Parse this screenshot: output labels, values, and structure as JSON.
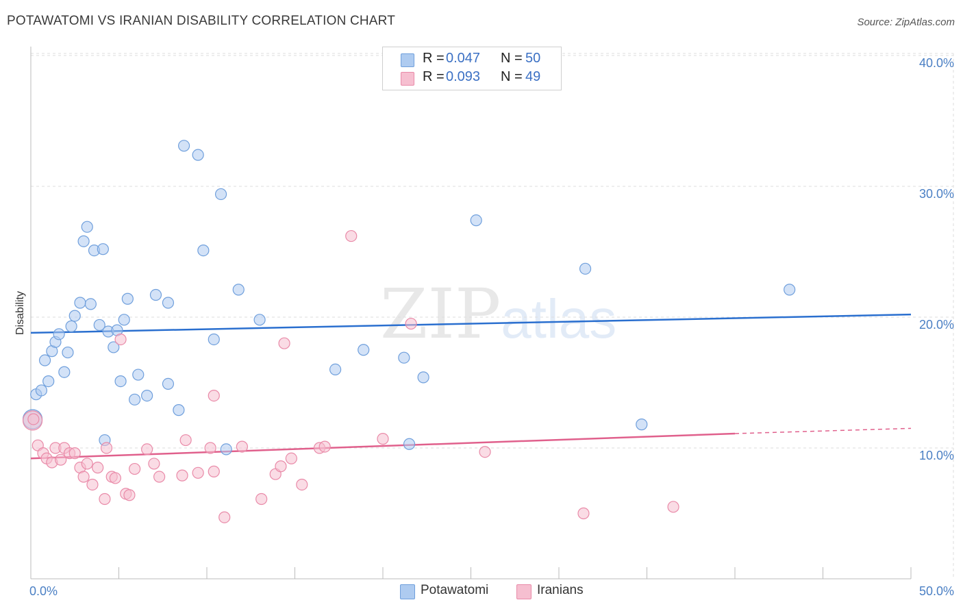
{
  "title": "POTAWATOMI VS IRANIAN DISABILITY CORRELATION CHART",
  "source": "Source: ZipAtlas.com",
  "watermark": {
    "zip": "ZIP",
    "atlas": "atlas"
  },
  "legend": {
    "rows": [
      {
        "r_label": "R =",
        "r_value": "0.047",
        "n_label": "N =",
        "n_value": "50"
      },
      {
        "r_label": "R =",
        "r_value": "0.093",
        "n_label": "N =",
        "n_value": "49"
      }
    ]
  },
  "bottom_legend": {
    "potawatomi": "Potawatomi",
    "iranians": "Iranians"
  },
  "colors": {
    "blue_fill": "#aecbf0",
    "blue_stroke": "#6f9fdc",
    "blue_line": "#2a6fcf",
    "pink_fill": "#f6bfd0",
    "pink_stroke": "#e98aa8",
    "pink_line": "#e0608c",
    "tick_label": "#4a7fc4",
    "grid": "#dddddd"
  },
  "chart_data": {
    "type": "scatter",
    "title": "POTAWATOMI VS IRANIAN DISABILITY CORRELATION CHART",
    "xlabel": "",
    "ylabel": "Disability",
    "xlim": [
      0,
      50
    ],
    "ylim": [
      0,
      42
    ],
    "x_tick_labels": [
      "0.0%",
      "50.0%"
    ],
    "y_ticks": [
      10,
      20,
      30,
      40
    ],
    "y_tick_labels": [
      "10.0%",
      "20.0%",
      "30.0%",
      "40.0%"
    ],
    "grid": true,
    "series": [
      {
        "name": "Potawatomi",
        "color": "#6f9fdc",
        "r": 0.047,
        "n": 50,
        "trend": {
          "x": [
            0,
            50
          ],
          "y": [
            18.8,
            20.2
          ]
        },
        "points": [
          [
            0.1,
            12.2
          ],
          [
            0.3,
            14.1
          ],
          [
            0.6,
            14.4
          ],
          [
            0.8,
            16.7
          ],
          [
            1.0,
            15.1
          ],
          [
            1.2,
            17.4
          ],
          [
            1.4,
            18.1
          ],
          [
            1.6,
            18.7
          ],
          [
            1.9,
            15.8
          ],
          [
            2.1,
            17.3
          ],
          [
            2.3,
            19.3
          ],
          [
            2.5,
            20.1
          ],
          [
            2.8,
            21.1
          ],
          [
            3.2,
            26.9
          ],
          [
            3.0,
            25.8
          ],
          [
            3.4,
            21.0
          ],
          [
            3.6,
            25.1
          ],
          [
            3.9,
            19.4
          ],
          [
            4.1,
            25.2
          ],
          [
            4.4,
            18.9
          ],
          [
            4.7,
            17.7
          ],
          [
            4.9,
            19.0
          ],
          [
            5.1,
            15.1
          ],
          [
            5.3,
            19.8
          ],
          [
            5.5,
            21.4
          ],
          [
            5.9,
            13.7
          ],
          [
            6.1,
            15.6
          ],
          [
            6.6,
            14.0
          ],
          [
            7.1,
            21.7
          ],
          [
            7.8,
            21.1
          ],
          [
            7.8,
            14.9
          ],
          [
            8.4,
            12.9
          ],
          [
            8.7,
            33.1
          ],
          [
            9.5,
            32.4
          ],
          [
            9.8,
            25.1
          ],
          [
            10.4,
            18.3
          ],
          [
            10.8,
            29.4
          ],
          [
            11.1,
            9.9
          ],
          [
            11.8,
            22.1
          ],
          [
            13.0,
            19.8
          ],
          [
            17.3,
            16.0
          ],
          [
            18.9,
            17.5
          ],
          [
            21.2,
            16.9
          ],
          [
            21.5,
            10.3
          ],
          [
            22.3,
            15.4
          ],
          [
            25.3,
            27.4
          ],
          [
            31.5,
            23.7
          ],
          [
            34.7,
            11.8
          ],
          [
            43.1,
            22.1
          ],
          [
            4.2,
            10.6
          ]
        ]
      },
      {
        "name": "Iranians",
        "color": "#e98aa8",
        "r": 0.093,
        "n": 49,
        "trend": {
          "x": [
            0,
            40
          ],
          "y": [
            9.2,
            11.1
          ]
        },
        "trend_dashed": {
          "x": [
            40,
            50
          ],
          "y": [
            11.1,
            11.5
          ]
        },
        "points": [
          [
            0.1,
            12.1
          ],
          [
            0.4,
            10.2
          ],
          [
            0.7,
            9.6
          ],
          [
            0.9,
            9.2
          ],
          [
            1.2,
            8.9
          ],
          [
            1.4,
            10.0
          ],
          [
            1.7,
            9.1
          ],
          [
            1.9,
            10.0
          ],
          [
            2.2,
            9.6
          ],
          [
            2.5,
            9.6
          ],
          [
            2.8,
            8.5
          ],
          [
            3.0,
            7.8
          ],
          [
            3.2,
            8.8
          ],
          [
            3.5,
            7.2
          ],
          [
            3.8,
            8.5
          ],
          [
            4.2,
            6.1
          ],
          [
            4.3,
            10.0
          ],
          [
            4.6,
            7.8
          ],
          [
            4.8,
            7.7
          ],
          [
            5.1,
            18.3
          ],
          [
            5.4,
            6.5
          ],
          [
            5.6,
            6.4
          ],
          [
            5.9,
            8.4
          ],
          [
            6.6,
            9.9
          ],
          [
            7.0,
            8.8
          ],
          [
            7.3,
            7.8
          ],
          [
            8.6,
            7.9
          ],
          [
            8.8,
            10.6
          ],
          [
            9.5,
            8.1
          ],
          [
            10.2,
            10.0
          ],
          [
            10.4,
            8.2
          ],
          [
            10.4,
            14.0
          ],
          [
            11.0,
            4.7
          ],
          [
            12.0,
            10.1
          ],
          [
            13.1,
            6.1
          ],
          [
            13.9,
            8.0
          ],
          [
            14.2,
            8.6
          ],
          [
            14.4,
            18.0
          ],
          [
            14.8,
            9.2
          ],
          [
            15.4,
            7.2
          ],
          [
            16.4,
            10.0
          ],
          [
            16.7,
            10.1
          ],
          [
            18.2,
            26.2
          ],
          [
            20.0,
            10.7
          ],
          [
            21.6,
            19.5
          ],
          [
            25.8,
            9.7
          ],
          [
            31.4,
            5.0
          ],
          [
            36.5,
            5.5
          ],
          [
            0.15,
            12.2
          ]
        ]
      }
    ]
  }
}
